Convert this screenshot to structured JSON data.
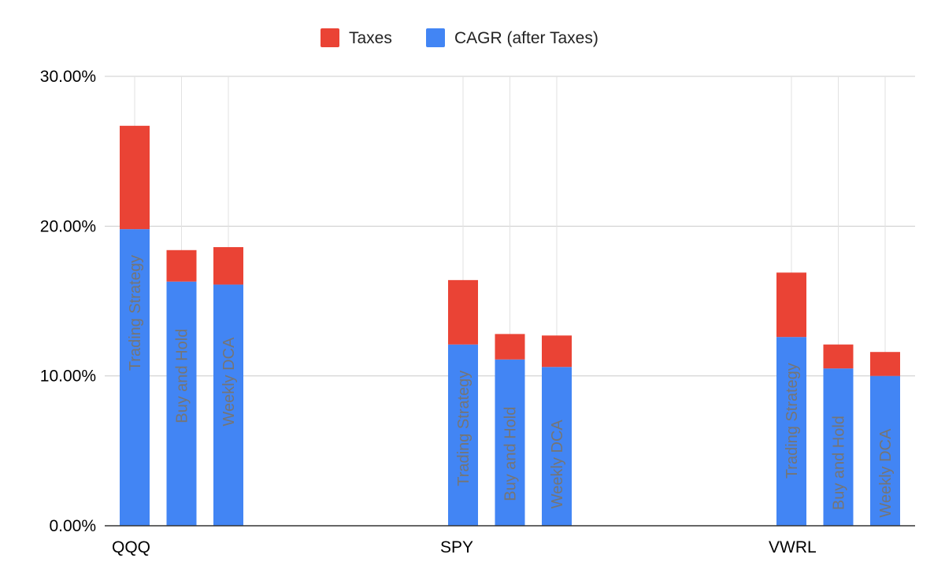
{
  "chart_data": {
    "type": "bar",
    "stacked": true,
    "groups": [
      "QQQ",
      "SPY",
      "VWRL"
    ],
    "bar_labels": [
      "Trading Strategy",
      "Buy and Hold",
      "Weekly DCA"
    ],
    "series": [
      {
        "name": "CAGR (after Taxes)",
        "color": "#4285f4",
        "values": [
          [
            19.8,
            16.3,
            16.1
          ],
          [
            12.1,
            11.1,
            10.6
          ],
          [
            12.6,
            10.5,
            10.0
          ]
        ]
      },
      {
        "name": "Taxes",
        "color": "#ea4335",
        "values": [
          [
            6.9,
            2.1,
            2.5
          ],
          [
            4.3,
            1.7,
            2.1
          ],
          [
            4.3,
            1.6,
            1.6
          ]
        ]
      }
    ],
    "legend_order": [
      "Taxes",
      "CAGR (after Taxes)"
    ],
    "legend_position": "top",
    "y_ticks": [
      "0.00%",
      "10.00%",
      "20.00%",
      "30.00%"
    ],
    "ylim": [
      0,
      30
    ],
    "grid": true
  }
}
